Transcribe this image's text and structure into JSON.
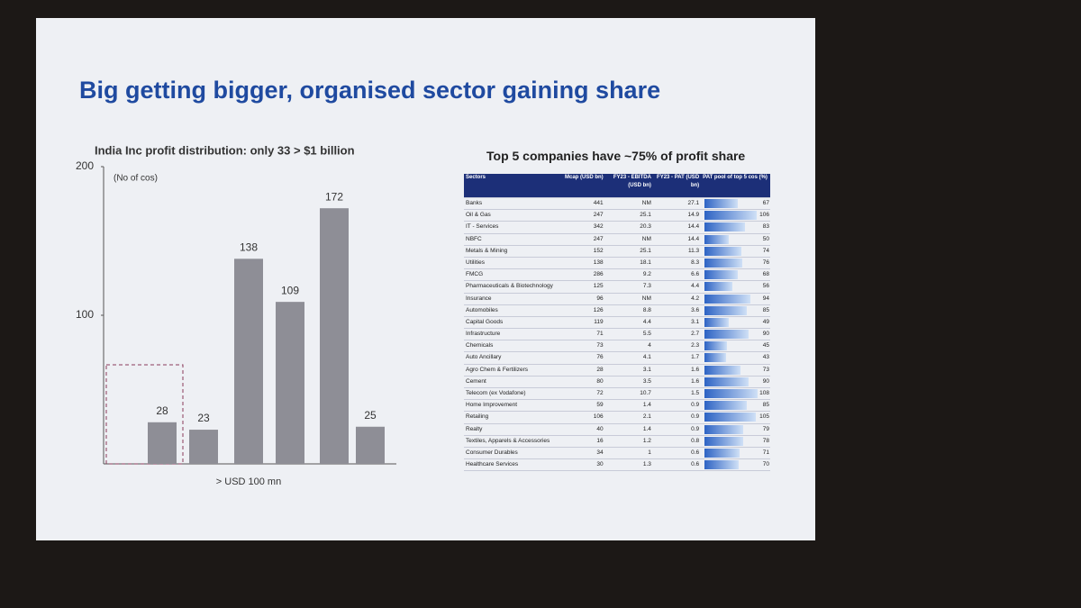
{
  "slide_title": "Big getting bigger, organised sector gaining share",
  "chart_data": {
    "type": "bar",
    "title": "India Inc profit distribution: only 33 > $1 billion",
    "y_label": "(No of cos)",
    "categories": [
      null,
      null,
      "> USD 100 mn",
      null,
      null,
      null
    ],
    "values": [
      28,
      23,
      138,
      109,
      172,
      25
    ],
    "color": "#8e8e96",
    "ylim": [
      0,
      200
    ],
    "yticks": [
      100,
      200
    ]
  },
  "table": {
    "title": "Top 5 companies have ~75% of profit share",
    "header": [
      "Sectors",
      "Mcap (USD bn)",
      "FY23 - EBITDA (USD bn)",
      "FY23 - PAT (USD bn)",
      "PAT pool of top 5 cos (%)"
    ],
    "rows": [
      [
        "Banks",
        441,
        "NM",
        27.1,
        67
      ],
      [
        "Oil & Gas",
        247,
        25.1,
        14.9,
        106
      ],
      [
        "IT - Services",
        342,
        20.3,
        14.4,
        83
      ],
      [
        "NBFC",
        247,
        "NM",
        14.4,
        50
      ],
      [
        "Metals & Mining",
        152,
        25.1,
        11.3,
        74
      ],
      [
        "Utilities",
        138,
        18.1,
        8.3,
        76
      ],
      [
        "FMCG",
        286,
        9.2,
        6.6,
        68
      ],
      [
        "Pharmaceuticals & Biotechnology",
        125,
        7.3,
        4.4,
        56
      ],
      [
        "Insurance",
        96,
        "NM",
        4.2,
        94
      ],
      [
        "Automobiles",
        126,
        8.8,
        3.6,
        85
      ],
      [
        "Capital Goods",
        119,
        4.4,
        3.1,
        49
      ],
      [
        "Infrastructure",
        71,
        5.5,
        2.7,
        90
      ],
      [
        "Chemicals",
        73,
        4.0,
        2.3,
        45
      ],
      [
        "Auto Ancillary",
        76,
        4.1,
        1.7,
        43
      ],
      [
        "Agro Chem & Fertilizers",
        28,
        3.1,
        1.6,
        73
      ],
      [
        "Cement",
        80,
        3.5,
        1.6,
        90
      ],
      [
        "Telecom (ex Vodafone)",
        72,
        10.7,
        1.5,
        108
      ],
      [
        "Home Improvement",
        59,
        1.4,
        0.9,
        85
      ],
      [
        "Retailing",
        106,
        2.1,
        0.9,
        105
      ],
      [
        "Realty",
        40,
        1.4,
        0.9,
        79
      ],
      [
        "Textiles, Apparels & Accessories",
        16,
        1.2,
        0.8,
        78
      ],
      [
        "Consumer Durables",
        34,
        1.0,
        0.6,
        71
      ],
      [
        "Healthcare Services",
        30,
        1.3,
        0.6,
        70
      ]
    ]
  }
}
